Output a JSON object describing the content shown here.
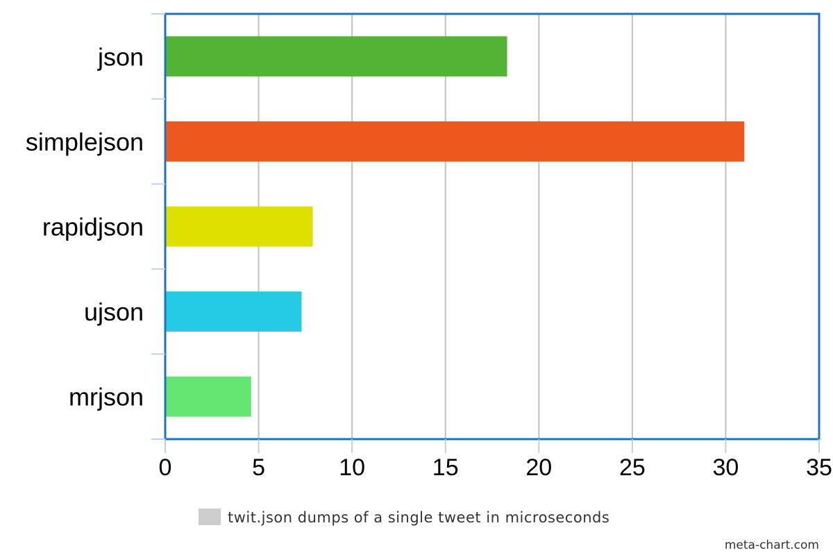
{
  "chart_data": {
    "type": "bar",
    "orientation": "horizontal",
    "categories": [
      "json",
      "simplejson",
      "rapidjson",
      "ujson",
      "mrjson"
    ],
    "series": [
      {
        "name": "twit.json dumps of a single tweet in microseconds",
        "values": [
          18.3,
          31.0,
          7.9,
          7.3,
          4.6
        ],
        "colors": [
          "#52b334",
          "#ec571d",
          "#dee100",
          "#24cbe5",
          "#64e572"
        ]
      }
    ],
    "xlim": [
      0,
      35
    ],
    "xticks": [
      "0",
      "5",
      "10",
      "15",
      "20",
      "25",
      "30",
      "35"
    ],
    "grid": true,
    "legend_position": "bottom-center",
    "legend_swatch_color": "#cccccc",
    "plot_border_color": "#1e73be",
    "gridline_color": "#c0c0c0"
  },
  "credit": "meta-chart.com"
}
